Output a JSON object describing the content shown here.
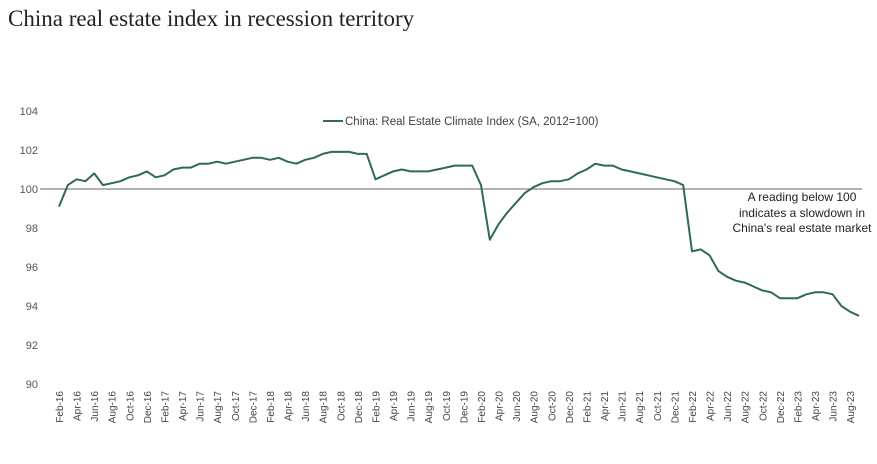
{
  "chart_data": {
    "type": "line",
    "title": "China real estate index in recession territory",
    "xlabel": "",
    "ylabel": "",
    "ylim": [
      90,
      104
    ],
    "yticks": [
      90,
      92,
      94,
      96,
      98,
      100,
      102,
      104
    ],
    "grid": false,
    "legend_position": "top-center",
    "reference_line": 100,
    "annotation": [
      "A reading below 100",
      "indicates a slowdown in",
      "China's real estate market"
    ],
    "tick_labels": [
      "Feb-16",
      "Apr-16",
      "Jun-16",
      "Aug-16",
      "Oct-16",
      "Dec-16",
      "Feb-17",
      "Apr-17",
      "Jun-17",
      "Aug-17",
      "Oct-17",
      "Dec-17",
      "Feb-18",
      "Apr-18",
      "Jun-18",
      "Aug-18",
      "Oct-18",
      "Dec-18",
      "Feb-19",
      "Apr-19",
      "Jun-19",
      "Aug-19",
      "Oct-19",
      "Dec-19",
      "Feb-20",
      "Apr-20",
      "Jun-20",
      "Aug-20",
      "Oct-20",
      "Dec-20",
      "Feb-21",
      "Apr-21",
      "Jun-21",
      "Aug-21",
      "Oct-21",
      "Dec-21",
      "Feb-22",
      "Apr-22",
      "Jun-22",
      "Aug-22",
      "Oct-22",
      "Dec-22",
      "Feb-23",
      "Apr-23",
      "Jun-23",
      "Aug-23"
    ],
    "series": [
      {
        "name": "China: Real Estate Climate Index (SA, 2012=100)",
        "color": "#2e6b4f",
        "start_month": "Feb-16",
        "values": [
          99.1,
          100.2,
          100.5,
          100.4,
          100.8,
          100.2,
          100.3,
          100.4,
          100.6,
          100.7,
          100.9,
          100.6,
          100.7,
          101.0,
          101.1,
          101.1,
          101.3,
          101.3,
          101.4,
          101.3,
          101.4,
          101.5,
          101.6,
          101.6,
          101.5,
          101.6,
          101.4,
          101.3,
          101.5,
          101.6,
          101.8,
          101.9,
          101.9,
          101.9,
          101.8,
          101.8,
          100.5,
          100.7,
          100.9,
          101.0,
          100.9,
          100.9,
          100.9,
          101.0,
          101.1,
          101.2,
          101.2,
          101.2,
          100.2,
          97.4,
          98.2,
          98.8,
          99.3,
          99.8,
          100.1,
          100.3,
          100.4,
          100.4,
          100.5,
          100.8,
          101.0,
          101.3,
          101.2,
          101.2,
          101.0,
          100.9,
          100.8,
          100.7,
          100.6,
          100.5,
          100.4,
          100.2,
          96.8,
          96.9,
          96.6,
          95.8,
          95.5,
          95.3,
          95.2,
          95.0,
          94.8,
          94.7,
          94.4,
          94.4,
          94.4,
          94.6,
          94.7,
          94.7,
          94.6,
          94.0,
          93.7,
          93.5
        ]
      }
    ]
  }
}
